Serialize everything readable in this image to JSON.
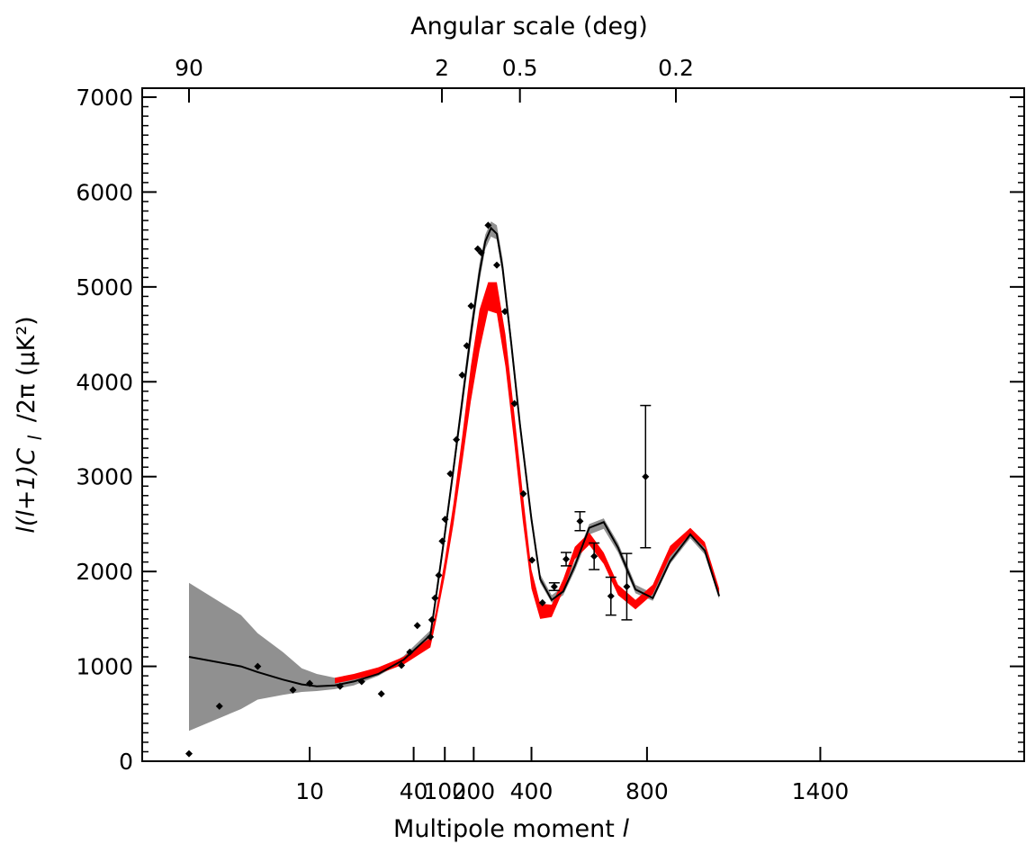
{
  "chart_data": {
    "type": "line",
    "title": "",
    "xlabel": "Multipole moment",
    "xlabel_symbol": "l",
    "ylabel": "l(l+1)C",
    "ylabel_subscript": "l",
    "ylabel_suffix": "/2π (μK²)",
    "top_axis_label": "Angular scale (deg)",
    "x_scale": "custom-stretched-log",
    "xlim": [
      2,
      2000
    ],
    "ylim": [
      0,
      7000
    ],
    "x_tick_values": [
      10,
      40,
      100,
      200,
      400,
      800,
      1400
    ],
    "x_tick_labels": [
      "10",
      "40",
      "100",
      "200",
      "400",
      "800",
      "1400"
    ],
    "y_tick_values": [
      0,
      1000,
      2000,
      3000,
      4000,
      5000,
      6000,
      7000
    ],
    "y_tick_labels": [
      "0",
      "1000",
      "2000",
      "3000",
      "4000",
      "5000",
      "6000",
      "7000"
    ],
    "top_tick_positions_l": [
      2,
      90,
      360,
      900
    ],
    "top_tick_labels": [
      "90",
      "2",
      "0.5",
      "0.2"
    ],
    "grid": false,
    "colors": {
      "gray_band": "#909090",
      "red_band": "#ff0000",
      "model_line": "#000000",
      "data_points": "#000000"
    },
    "series": [
      {
        "kind": "band",
        "color": "#909090",
        "x": [
          2,
          4,
          5,
          7,
          9,
          11,
          14,
          18,
          25,
          35,
          50,
          70,
          100,
          130,
          160,
          190,
          220,
          240,
          260,
          280,
          300,
          330,
          360,
          400,
          430,
          470,
          510,
          550,
          600,
          650,
          700,
          760,
          820,
          880,
          950,
          1000,
          1050
        ],
        "lower": [
          320,
          550,
          650,
          700,
          730,
          740,
          760,
          800,
          900,
          1050,
          1300,
          1700,
          2330,
          3020,
          3700,
          4400,
          5060,
          5400,
          5530,
          5500,
          5140,
          4320,
          3480,
          2500,
          1880,
          1670,
          1750,
          2010,
          2390,
          2450,
          2200,
          1770,
          1690,
          2080,
          2350,
          2180,
          1710
        ],
        "upper": [
          1880,
          1540,
          1350,
          1150,
          980,
          920,
          880,
          880,
          940,
          1110,
          1380,
          1810,
          2460,
          3160,
          3880,
          4600,
          5250,
          5550,
          5690,
          5650,
          5300,
          4480,
          3620,
          2620,
          1970,
          1750,
          1840,
          2110,
          2500,
          2560,
          2300,
          1860,
          1770,
          2170,
          2440,
          2260,
          1780
        ]
      },
      {
        "kind": "band",
        "color": "#ff0000",
        "x": [
          14,
          18,
          25,
          35,
          50,
          70,
          100,
          130,
          160,
          190,
          220,
          250,
          280,
          310,
          340,
          370,
          400,
          430,
          470,
          510,
          550,
          600,
          650,
          700,
          760,
          820,
          880,
          950,
          1000,
          1050
        ],
        "lower": [
          820,
          860,
          920,
          1020,
          1200,
          1480,
          1950,
          2500,
          3140,
          3790,
          4330,
          4750,
          4720,
          4160,
          3360,
          2530,
          1820,
          1500,
          1520,
          1800,
          2130,
          2280,
          2080,
          1750,
          1600,
          1760,
          2160,
          2400,
          2250,
          1760
        ],
        "upper": [
          880,
          920,
          990,
          1100,
          1300,
          1600,
          2120,
          2720,
          3420,
          4160,
          4760,
          5050,
          5050,
          4500,
          3680,
          2820,
          2020,
          1660,
          1650,
          1920,
          2260,
          2410,
          2200,
          1860,
          1700,
          1860,
          2270,
          2460,
          2310,
          1820
        ]
      },
      {
        "kind": "line",
        "name": "",
        "color": "#000000",
        "x": [
          2,
          4,
          5,
          7,
          9,
          11,
          14,
          18,
          25,
          35,
          50,
          70,
          100,
          130,
          160,
          190,
          220,
          240,
          260,
          280,
          300,
          330,
          360,
          400,
          430,
          470,
          510,
          550,
          600,
          650,
          700,
          760,
          820,
          880,
          950,
          1000,
          1050
        ],
        "y": [
          1100,
          1000,
          940,
          860,
          810,
          790,
          800,
          840,
          920,
          1070,
          1330,
          1740,
          2390,
          3080,
          3790,
          4500,
          5150,
          5480,
          5620,
          5560,
          5200,
          4400,
          3550,
          2550,
          1920,
          1700,
          1790,
          2060,
          2460,
          2520,
          2250,
          1810,
          1720,
          2110,
          2390,
          2220,
          1740
        ]
      },
      {
        "kind": "points",
        "name": "",
        "color": "#000000",
        "points": [
          {
            "x": 2,
            "y": 80,
            "err": 0
          },
          {
            "x": 3,
            "y": 580,
            "err": 0
          },
          {
            "x": 5,
            "y": 1000,
            "err": 0
          },
          {
            "x": 8,
            "y": 750,
            "err": 0
          },
          {
            "x": 10,
            "y": 820,
            "err": 0
          },
          {
            "x": 15,
            "y": 790,
            "err": 0
          },
          {
            "x": 20,
            "y": 840,
            "err": 0
          },
          {
            "x": 26,
            "y": 710,
            "err": 0
          },
          {
            "x": 34,
            "y": 1010,
            "err": 0
          },
          {
            "x": 38,
            "y": 1150,
            "err": 0
          },
          {
            "x": 42,
            "y": 1430,
            "err": 0
          },
          {
            "x": 50,
            "y": 1310,
            "err": 0
          },
          {
            "x": 55,
            "y": 1490,
            "err": 0
          },
          {
            "x": 66,
            "y": 1720,
            "err": 0
          },
          {
            "x": 79,
            "y": 1960,
            "err": 0
          },
          {
            "x": 91,
            "y": 2320,
            "err": 0
          },
          {
            "x": 101,
            "y": 2550,
            "err": 0
          },
          {
            "x": 119,
            "y": 3030,
            "err": 0
          },
          {
            "x": 140,
            "y": 3390,
            "err": 0
          },
          {
            "x": 160,
            "y": 4070,
            "err": 0
          },
          {
            "x": 176,
            "y": 4380,
            "err": 0
          },
          {
            "x": 191,
            "y": 4800,
            "err": 0
          },
          {
            "x": 214,
            "y": 5400,
            "err": 0
          },
          {
            "x": 226,
            "y": 5360,
            "err": 0
          },
          {
            "x": 250,
            "y": 5650,
            "err": 0
          },
          {
            "x": 280,
            "y": 5230,
            "err": 0
          },
          {
            "x": 308,
            "y": 4740,
            "err": 0
          },
          {
            "x": 341,
            "y": 3770,
            "err": 0
          },
          {
            "x": 372,
            "y": 2820,
            "err": 0
          },
          {
            "x": 402,
            "y": 2120,
            "err": 0
          },
          {
            "x": 438,
            "y": 1670,
            "err": 0
          },
          {
            "x": 479,
            "y": 1840,
            "err": 40
          },
          {
            "x": 520,
            "y": 2130,
            "err": 70
          },
          {
            "x": 568,
            "y": 2530,
            "err": 100
          },
          {
            "x": 617,
            "y": 2160,
            "err": 140
          },
          {
            "x": 675,
            "y": 1740,
            "err": 200
          },
          {
            "x": 730,
            "y": 1840,
            "err": 350
          },
          {
            "x": 795,
            "y": 3000,
            "err": 750
          }
        ]
      }
    ]
  }
}
